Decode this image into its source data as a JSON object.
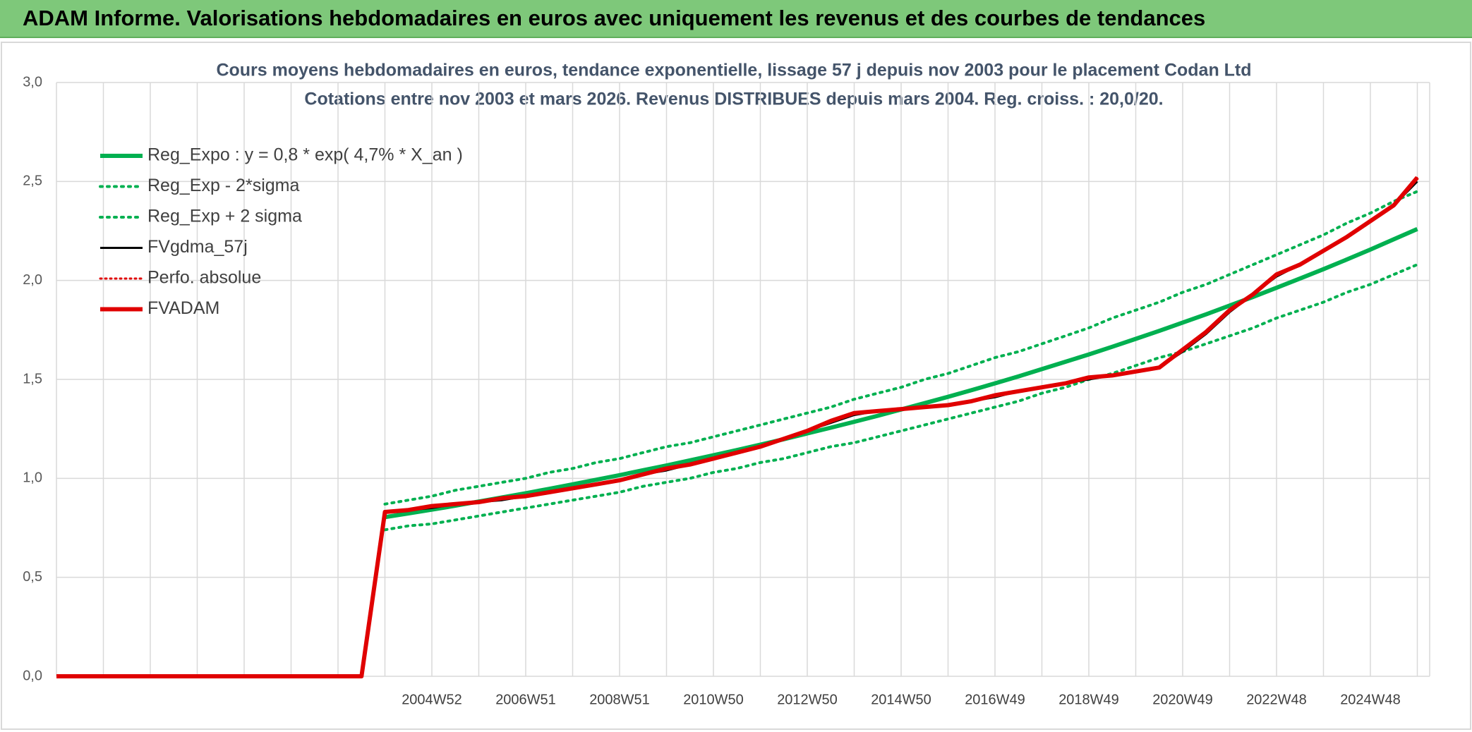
{
  "header": {
    "title": "ADAM Informe. Valorisations hebdomadaires en euros avec uniquement les revenus et des courbes de tendances"
  },
  "chart_data": {
    "type": "line",
    "title": "Cours moyens hebdomadaires en euros, tendance exponentielle, lissage 57 j depuis nov 2003 pour le placement Codan Ltd",
    "subtitle": "Cotations entre nov 2003 et mars 2026. Revenus DISTRIBUES depuis mars 2004. Reg. croiss. : 20,0/20.",
    "categories": [
      null,
      null,
      null,
      null,
      null,
      null,
      null,
      null,
      null,
      null,
      null,
      null,
      null,
      null,
      null,
      null,
      "2004W52",
      null,
      null,
      null,
      "2006W51",
      null,
      null,
      null,
      "2008W51",
      null,
      null,
      null,
      "2010W50",
      null,
      null,
      null,
      "2012W50",
      null,
      null,
      null,
      "2014W50",
      null,
      null,
      null,
      "2016W49",
      null,
      null,
      null,
      "2018W49",
      null,
      null,
      null,
      "2020W49",
      null,
      null,
      null,
      "2022W48",
      null,
      null,
      null,
      "2024W48",
      null,
      null
    ],
    "ylim": [
      0,
      3
    ],
    "yticks": [
      {
        "value": 0,
        "label": "0,0"
      },
      {
        "value": 0.5,
        "label": "0,5"
      },
      {
        "value": 1,
        "label": "1,0"
      },
      {
        "value": 1.5,
        "label": "1,5"
      },
      {
        "value": 2,
        "label": "2,0"
      },
      {
        "value": 2.5,
        "label": "2,5"
      },
      {
        "value": 3,
        "label": "3,0"
      }
    ],
    "grid": true,
    "legend": "upper left",
    "series": [
      {
        "name": "Reg_Expo : y = 0,8 * exp( 4,7% *  X_an )",
        "color": "#00b050",
        "style": "solid",
        "width": 6,
        "values": [
          null,
          null,
          null,
          null,
          null,
          null,
          null,
          null,
          null,
          null,
          null,
          null,
          null,
          null,
          0.804,
          0.823,
          0.842,
          0.862,
          0.883,
          0.904,
          0.925,
          0.947,
          0.97,
          0.993,
          1.016,
          1.041,
          1.065,
          1.091,
          1.117,
          1.143,
          1.17,
          1.198,
          1.227,
          1.256,
          1.286,
          1.316,
          1.348,
          1.38,
          1.412,
          1.446,
          1.48,
          1.515,
          1.552,
          1.589,
          1.626,
          1.665,
          1.705,
          1.745,
          1.787,
          1.829,
          1.873,
          1.917,
          1.963,
          2.01,
          2.057,
          2.106,
          2.156,
          2.208,
          2.26
        ]
      },
      {
        "name": "Reg_Exp - 2*sigma",
        "color": "#00b050",
        "style": "dotted",
        "width": 4,
        "values": [
          null,
          null,
          null,
          null,
          null,
          null,
          null,
          null,
          null,
          null,
          null,
          null,
          null,
          null,
          0.74,
          0.76,
          0.77,
          0.79,
          0.81,
          0.83,
          0.85,
          0.87,
          0.89,
          0.91,
          0.93,
          0.96,
          0.98,
          1.0,
          1.03,
          1.05,
          1.08,
          1.1,
          1.13,
          1.16,
          1.18,
          1.21,
          1.24,
          1.27,
          1.3,
          1.33,
          1.36,
          1.39,
          1.43,
          1.46,
          1.5,
          1.53,
          1.57,
          1.61,
          1.64,
          1.68,
          1.72,
          1.76,
          1.81,
          1.85,
          1.89,
          1.94,
          1.98,
          2.03,
          2.08
        ]
      },
      {
        "name": "Reg_Exp + 2 sigma",
        "color": "#00b050",
        "style": "dotted",
        "width": 4,
        "values": [
          null,
          null,
          null,
          null,
          null,
          null,
          null,
          null,
          null,
          null,
          null,
          null,
          null,
          null,
          0.87,
          0.89,
          0.91,
          0.94,
          0.96,
          0.98,
          1.0,
          1.03,
          1.05,
          1.08,
          1.1,
          1.13,
          1.16,
          1.18,
          1.21,
          1.24,
          1.27,
          1.3,
          1.33,
          1.36,
          1.4,
          1.43,
          1.46,
          1.5,
          1.53,
          1.57,
          1.61,
          1.64,
          1.68,
          1.72,
          1.76,
          1.81,
          1.85,
          1.89,
          1.94,
          1.98,
          2.03,
          2.08,
          2.13,
          2.18,
          2.23,
          2.29,
          2.34,
          2.4,
          2.45
        ]
      },
      {
        "name": "FVgdma_57j",
        "color": "#000000",
        "style": "solid",
        "width": 3,
        "values": [
          null,
          null,
          null,
          null,
          null,
          null,
          null,
          null,
          null,
          null,
          null,
          null,
          null,
          null,
          0.83,
          0.84,
          0.85,
          0.87,
          0.88,
          0.89,
          0.91,
          0.93,
          0.95,
          0.97,
          0.99,
          1.02,
          1.04,
          1.07,
          1.1,
          1.13,
          1.16,
          1.2,
          1.24,
          1.28,
          1.32,
          1.34,
          1.35,
          1.36,
          1.37,
          1.39,
          1.41,
          1.44,
          1.46,
          1.48,
          1.5,
          1.52,
          1.54,
          1.56,
          1.64,
          1.73,
          1.84,
          1.93,
          2.02,
          2.08,
          2.15,
          2.22,
          2.3,
          2.38,
          2.5
        ]
      },
      {
        "name": "Perfo. absolue",
        "color": "#e00000",
        "style": "dotted",
        "width": 3,
        "values": [
          null,
          null,
          null,
          null,
          null,
          null,
          null,
          null,
          null,
          null,
          null,
          null,
          null,
          null,
          0.83,
          0.84,
          0.86,
          0.87,
          0.88,
          0.9,
          0.91,
          0.93,
          0.95,
          0.97,
          0.99,
          1.02,
          1.05,
          1.07,
          1.1,
          1.13,
          1.16,
          1.2,
          1.24,
          1.29,
          1.33,
          1.34,
          1.35,
          1.36,
          1.37,
          1.39,
          1.42,
          1.44,
          1.46,
          1.48,
          1.51,
          1.52,
          1.54,
          1.56,
          1.65,
          1.74,
          1.85,
          1.93,
          2.03,
          2.08,
          2.15,
          2.22,
          2.3,
          2.38,
          2.52
        ]
      },
      {
        "name": "FVADAM",
        "color": "#e00000",
        "style": "solid",
        "width": 6,
        "values": [
          0,
          0,
          0,
          0,
          0,
          0,
          0,
          0,
          0,
          0,
          0,
          0,
          0,
          0,
          0.83,
          0.84,
          0.86,
          0.87,
          0.88,
          0.9,
          0.91,
          0.93,
          0.95,
          0.97,
          0.99,
          1.02,
          1.05,
          1.07,
          1.1,
          1.13,
          1.16,
          1.2,
          1.24,
          1.29,
          1.33,
          1.34,
          1.35,
          1.36,
          1.37,
          1.39,
          1.42,
          1.44,
          1.46,
          1.48,
          1.51,
          1.52,
          1.54,
          1.56,
          1.65,
          1.74,
          1.85,
          1.93,
          2.03,
          2.08,
          2.15,
          2.22,
          2.3,
          2.38,
          2.52
        ]
      }
    ]
  }
}
